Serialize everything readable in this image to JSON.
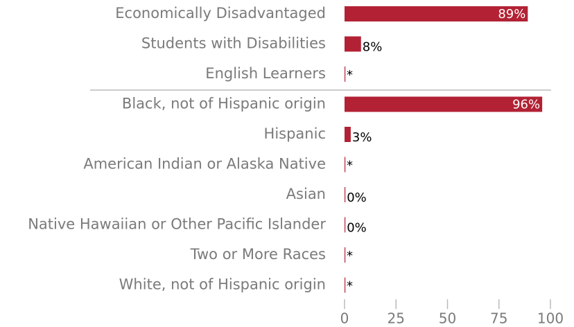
{
  "chart_data": {
    "type": "bar",
    "orientation": "horizontal",
    "categories": [
      "Economically Disadvantaged",
      "Students with Disabilities",
      "English Learners",
      "Black, not of Hispanic origin",
      "Hispanic",
      "American Indian or Alaska Native",
      "Asian",
      "Native Hawaiian or Other Pacific Islander",
      "Two or More Races",
      "White, not of Hispanic origin"
    ],
    "values": [
      89,
      8,
      null,
      96,
      3,
      null,
      0,
      0,
      null,
      null
    ],
    "value_labels": [
      "89%",
      "8%",
      "*",
      "96%",
      "3%",
      "*",
      "0%",
      "0%",
      "*",
      "*"
    ],
    "color": "#b22234",
    "xlim": [
      0,
      100
    ],
    "xticks": [
      0,
      25,
      50,
      75,
      100
    ]
  }
}
